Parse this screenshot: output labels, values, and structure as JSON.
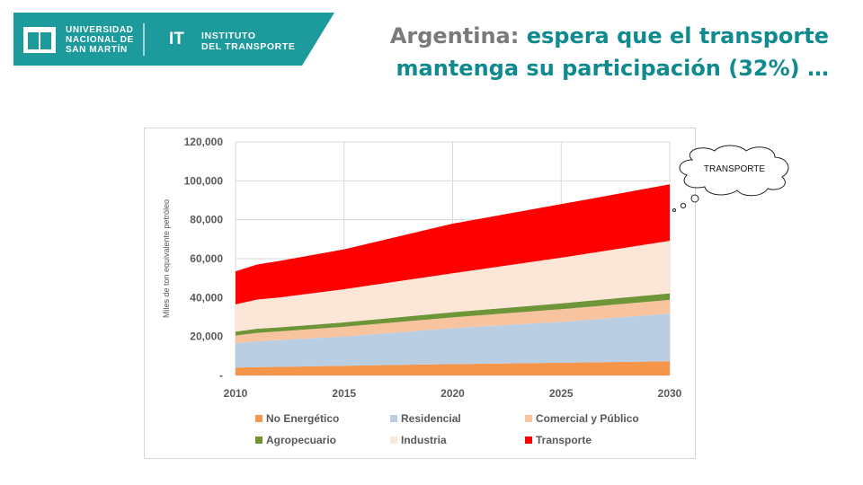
{
  "header": {
    "university_lines": [
      "UNIVERSIDAD",
      "NACIONAL DE",
      "SAN MARTÍN"
    ],
    "institute_abbrev": "IT",
    "institute_lines": [
      "INSTITUTO",
      "DEL TRANSPORTE"
    ],
    "colors": {
      "brand": "#1c9a9c",
      "title_accent": "#0f8a8e",
      "title_lead": "#7a7a7a"
    }
  },
  "slide": {
    "title_lead": "Argentina:",
    "title_rest": " espera que el transporte mantenga su participación (32%) …"
  },
  "callout": {
    "text": "TRANSPORTE"
  },
  "chart_data": {
    "type": "area",
    "stacked": true,
    "ylabel": "Miles de ton equivalente petróleo",
    "ylim": [
      0,
      120000
    ],
    "y_ticks": [
      0,
      20000,
      40000,
      60000,
      80000,
      100000,
      120000
    ],
    "y_tick_labels": [
      "-",
      "20,000",
      "40,000",
      "60,000",
      "80,000",
      "100,000",
      "120,000"
    ],
    "xlim": [
      2010,
      2030
    ],
    "x_ticks": [
      2010,
      2015,
      2020,
      2025,
      2030
    ],
    "x_tick_labels": [
      "2010",
      "2015",
      "2020",
      "2025",
      "2030"
    ],
    "grid": true,
    "legend_position": "bottom",
    "x": [
      2010,
      2011,
      2012,
      2015,
      2020,
      2025,
      2030
    ],
    "series": [
      {
        "name": "No Energético",
        "color": "#f4954a",
        "values": [
          4000,
          4300,
          4400,
          5000,
          5800,
          6500,
          7300
        ]
      },
      {
        "name": "Residencial",
        "color": "#b9cde3",
        "values": [
          12500,
          13300,
          13800,
          15000,
          18500,
          21000,
          24500
        ]
      },
      {
        "name": "Comercial y Público",
        "color": "#f8c39f",
        "values": [
          4000,
          4300,
          4400,
          5000,
          5500,
          6500,
          7000
        ]
      },
      {
        "name": "Agropecuario",
        "color": "#6e9537",
        "values": [
          2000,
          2100,
          2100,
          2300,
          2700,
          3000,
          3400
        ]
      },
      {
        "name": "Industria",
        "color": "#fce6d8",
        "values": [
          14000,
          15000,
          15300,
          17000,
          20000,
          23500,
          27000
        ]
      },
      {
        "name": "Transporte",
        "color": "#ff0000",
        "values": [
          17000,
          18000,
          18800,
          20500,
          25500,
          27500,
          29000
        ]
      }
    ]
  }
}
